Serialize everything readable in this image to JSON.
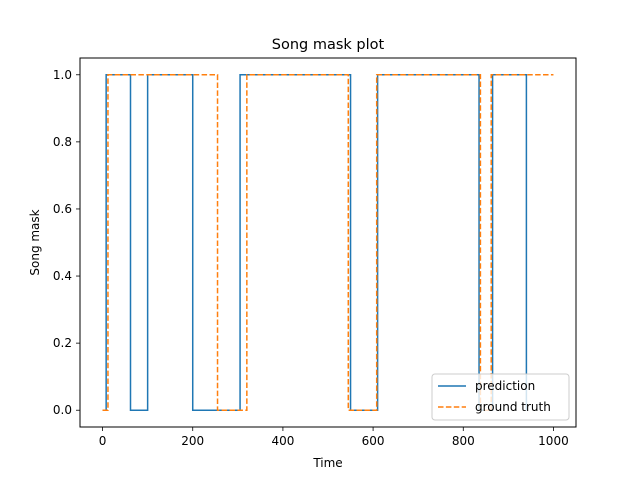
{
  "chart_data": {
    "type": "line",
    "title": "Song mask plot",
    "xlabel": "Time",
    "ylabel": "Song mask",
    "xlim": [
      -50,
      1050
    ],
    "ylim": [
      -0.05,
      1.05
    ],
    "xticks": [
      0,
      200,
      400,
      600,
      800,
      1000
    ],
    "yticks": [
      0.0,
      0.2,
      0.4,
      0.6,
      0.8,
      1.0
    ],
    "xtick_labels": [
      "0",
      "200",
      "400",
      "600",
      "800",
      "1000"
    ],
    "ytick_labels": [
      "0.0",
      "0.2",
      "0.4",
      "0.6",
      "0.8",
      "1.0"
    ],
    "grid": false,
    "legend_position": "lower-right",
    "series": [
      {
        "name": "prediction",
        "color": "#1f77b4",
        "style": "solid",
        "x": [
          0,
          8,
          8,
          62,
          62,
          100,
          100,
          200,
          200,
          305,
          305,
          550,
          550,
          610,
          610,
          835,
          835,
          865,
          865,
          940,
          940
        ],
        "y": [
          0,
          0,
          1,
          1,
          0,
          0,
          1,
          1,
          0,
          0,
          1,
          1,
          0,
          0,
          1,
          1,
          0,
          0,
          1,
          1,
          0
        ]
      },
      {
        "name": "ground truth",
        "color": "#ff7f0e",
        "style": "dashed",
        "x": [
          0,
          12,
          12,
          255,
          255,
          320,
          320,
          545,
          545,
          608,
          608,
          838,
          838,
          862,
          862,
          1000
        ],
        "y": [
          0,
          0,
          1,
          1,
          0,
          0,
          1,
          1,
          0,
          0,
          1,
          1,
          0,
          0,
          1,
          1
        ]
      }
    ]
  }
}
